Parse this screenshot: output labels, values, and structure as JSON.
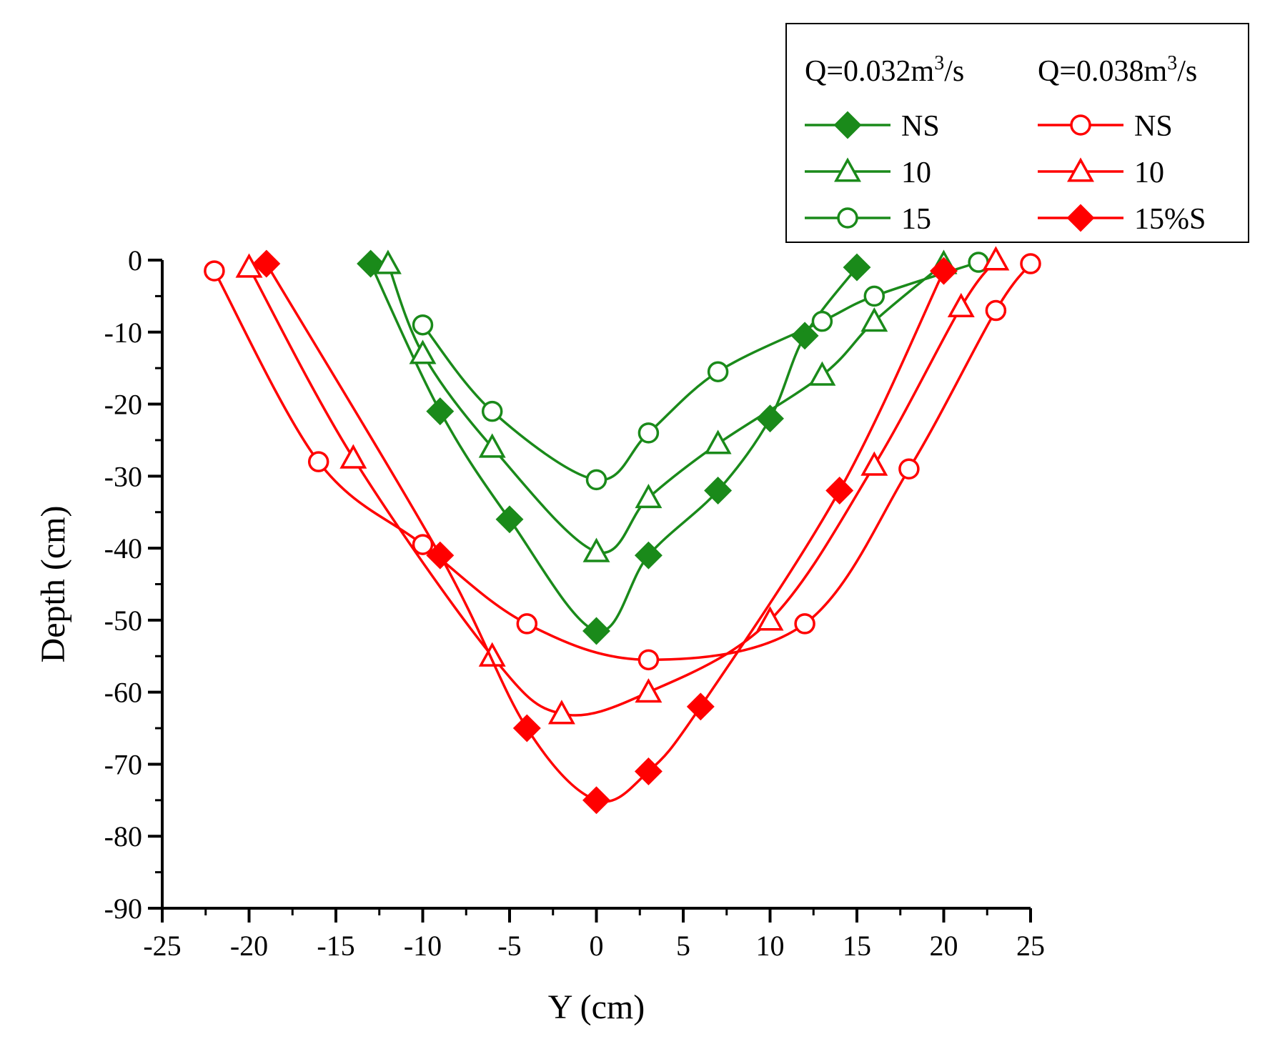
{
  "chart_data": {
    "type": "line",
    "title": "",
    "xlabel": "Y (cm)",
    "ylabel": "Depth (cm)",
    "xlim": [
      -25,
      25
    ],
    "ylim": [
      -90,
      0
    ],
    "x_ticks": [
      -25,
      -20,
      -15,
      -10,
      -5,
      0,
      5,
      10,
      15,
      20,
      25
    ],
    "y_ticks": [
      0,
      -10,
      -20,
      -30,
      -40,
      -50,
      -60,
      -70,
      -80,
      -90
    ],
    "grid": false,
    "legend": {
      "placement": "top-right",
      "group_headers": [
        {
          "prefix": "Q=0.032m",
          "sup": "3",
          "suffix": "/s"
        },
        {
          "prefix": "Q=0.038m",
          "sup": "3",
          "suffix": "/s"
        }
      ]
    },
    "colors": {
      "green": "#1a8a1a",
      "red": "#ff0000"
    },
    "series": [
      {
        "name": "NS",
        "group": 0,
        "color": "#1a8a1a",
        "marker": "diamond",
        "filled": true,
        "x": [
          -13,
          -9,
          -5,
          0,
          3,
          7,
          10,
          12,
          15
        ],
        "y": [
          -0.5,
          -21,
          -36,
          -51.5,
          -41,
          -32,
          -22,
          -10.5,
          -1
        ]
      },
      {
        "name": "10",
        "group": 0,
        "color": "#1a8a1a",
        "marker": "triangle",
        "filled": false,
        "x": [
          -12,
          -10,
          -6,
          0,
          3,
          7,
          13,
          16,
          20
        ],
        "y": [
          -0.5,
          -13,
          -26,
          -40.5,
          -33,
          -25.5,
          -16,
          -8.5,
          -0.5
        ]
      },
      {
        "name": "15",
        "group": 0,
        "color": "#1a8a1a",
        "marker": "circle",
        "filled": false,
        "x": [
          -10,
          -6,
          0,
          3,
          7,
          13,
          16,
          22
        ],
        "y": [
          -9,
          -21,
          -30.5,
          -24,
          -15.5,
          -8.5,
          -5,
          -0.3
        ]
      },
      {
        "name": "NS",
        "group": 1,
        "color": "#ff0000",
        "marker": "circle",
        "filled": false,
        "x": [
          -22,
          -16,
          -10,
          -4,
          3,
          12,
          18,
          23,
          25
        ],
        "y": [
          -1.5,
          -28,
          -39.5,
          -50.5,
          -55.5,
          -50.5,
          -29,
          -7,
          -0.5
        ]
      },
      {
        "name": "10",
        "group": 1,
        "color": "#ff0000",
        "marker": "triangle",
        "filled": false,
        "x": [
          -20,
          -14,
          -6,
          -2,
          3,
          10,
          16,
          21,
          23
        ],
        "y": [
          -1,
          -27.5,
          -55,
          -63,
          -60,
          -50,
          -28.5,
          -6.5,
          0
        ]
      },
      {
        "name": "15%S",
        "group": 1,
        "color": "#ff0000",
        "marker": "diamond",
        "filled": true,
        "x": [
          -19,
          -9,
          -4,
          0,
          3,
          6,
          14,
          20
        ],
        "y": [
          -0.5,
          -41,
          -65,
          -75,
          -71,
          -62,
          -32,
          -1.5
        ]
      }
    ]
  }
}
